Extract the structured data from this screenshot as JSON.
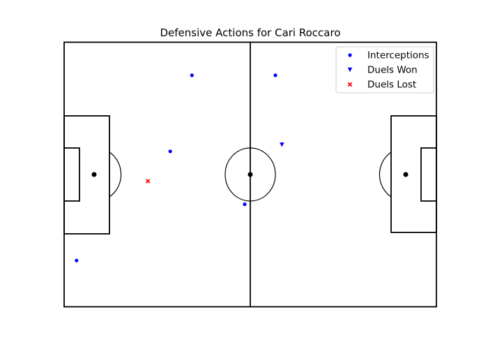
{
  "chart_data": {
    "type": "scatter",
    "title": "Defensive Actions for Cari Roccaro",
    "xlabel": "",
    "ylabel": "",
    "xlim": [
      0,
      120
    ],
    "ylim": [
      0,
      80
    ],
    "grid": false,
    "legend_position": "top-right",
    "series": [
      {
        "name": "Interceptions",
        "marker": "circle",
        "color": "#0000ff",
        "points": [
          {
            "x": 41.2,
            "y": 70
          },
          {
            "x": 68.1,
            "y": 70
          },
          {
            "x": 34.2,
            "y": 47
          },
          {
            "x": 58.2,
            "y": 31
          },
          {
            "x": 4.0,
            "y": 14
          }
        ]
      },
      {
        "name": "Duels Won",
        "marker": "triangle-down",
        "color": "#0000ff",
        "points": [
          {
            "x": 70.2,
            "y": 49
          }
        ]
      },
      {
        "name": "Duels Lost",
        "marker": "x",
        "color": "#ff0000",
        "points": [
          {
            "x": 27.0,
            "y": 38
          }
        ]
      }
    ]
  }
}
